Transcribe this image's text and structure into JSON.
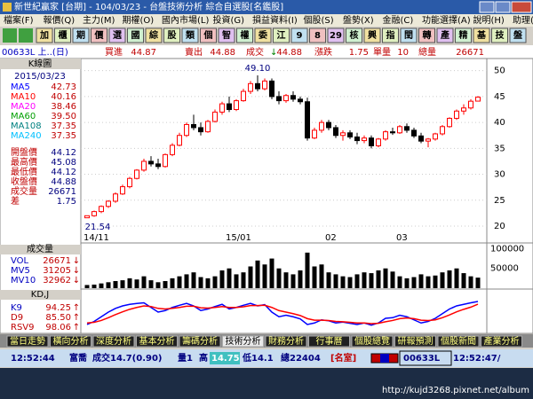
{
  "window": {
    "title": "新世紀贏家 [台期] - 104/03/23 - 台盤技術分析 綜合自選股[名鑑股]",
    "menu": [
      "檔案(F)",
      "報價(Q)",
      "主力(M)",
      "期權(O)",
      "國內市場(L)",
      "投資(G)",
      "損益資料(I)",
      "個股(S)",
      "盤勢(X)",
      "金融(C)",
      "功能選擇(A)",
      "說明(H)",
      "助理(Z)"
    ]
  },
  "toolbar": [
    "加",
    "櫃",
    "期",
    "價",
    "選",
    "國",
    "綜",
    "股",
    "類",
    "個",
    "智",
    "權",
    "委",
    "江",
    "9",
    "8",
    "29",
    "核",
    "興",
    "指",
    "閏",
    "轉",
    "產",
    "精",
    "基",
    "技",
    "盤"
  ],
  "quote": {
    "symbol": "00633L 上..(日)",
    "bid_label": "買進",
    "bid": "44.87",
    "ask_label": "賣出",
    "ask": "44.88",
    "last_label": "成交",
    "arrow": "↓",
    "last": "44.88",
    "change_label": "漲跌",
    "change": "1.75",
    "lot_label": "單量",
    "lot": "10",
    "volume_label": "總量",
    "volume": "26671"
  },
  "sidebar": {
    "title": "K線圖",
    "date": "2015/03/23",
    "ma": [
      {
        "name": "MA5",
        "value": "42.73",
        "color": "#0000ff"
      },
      {
        "name": "MA10",
        "value": "40.16",
        "color": "#ff0000"
      },
      {
        "name": "MA20",
        "value": "38.46",
        "color": "#ff00ff"
      },
      {
        "name": "MA60",
        "value": "39.50",
        "color": "#00a000"
      },
      {
        "name": "MA108",
        "value": "37.35",
        "color": "#008080"
      },
      {
        "name": "MA240",
        "value": "37.35",
        "color": "#00c0ff"
      }
    ],
    "ohlc": [
      {
        "name": "開盤價",
        "value": "44.12"
      },
      {
        "name": "最高價",
        "value": "45.08"
      },
      {
        "name": "最低價",
        "value": "44.12"
      },
      {
        "name": "收盤價",
        "value": "44.88"
      },
      {
        "name": "成交量",
        "value": "26671"
      },
      {
        "name": "差",
        "value": "1.75"
      }
    ]
  },
  "chart": {
    "ylim": [
      18.8,
      52.0
    ],
    "yticks": [
      20,
      25,
      30,
      35,
      40,
      45,
      50
    ],
    "up_color": "#ff0000",
    "down_color": "#000000",
    "high_label": "49.10",
    "low_label": "21.54",
    "xlabels": [
      {
        "index": 0,
        "label": "14/11"
      },
      {
        "index": 20,
        "label": "15/01"
      },
      {
        "index": 34,
        "label": "02"
      },
      {
        "index": 44,
        "label": "03"
      }
    ],
    "candles": [
      [
        21.6,
        22,
        21.54,
        22
      ],
      [
        22,
        23,
        21.8,
        22.8
      ],
      [
        22.8,
        24,
        22.5,
        23.8
      ],
      [
        23.8,
        25,
        23.5,
        24.8
      ],
      [
        24.8,
        26.5,
        24.5,
        26.2
      ],
      [
        26.2,
        28,
        26,
        27.6
      ],
      [
        27.6,
        29.5,
        27.3,
        29.2
      ],
      [
        29.2,
        31,
        29,
        30.8
      ],
      [
        30.8,
        33,
        30.5,
        32.5
      ],
      [
        32.5,
        33.5,
        31.5,
        32
      ],
      [
        32,
        33,
        31,
        31.5
      ],
      [
        31.5,
        34,
        31.3,
        33.8
      ],
      [
        33.8,
        36,
        33.5,
        35.6
      ],
      [
        35.6,
        38,
        35.4,
        37.5
      ],
      [
        37.5,
        40,
        37.2,
        39.6
      ],
      [
        39.6,
        41.5,
        38.5,
        39
      ],
      [
        39,
        40,
        37.5,
        38.2
      ],
      [
        38.2,
        40.5,
        38,
        40.2
      ],
      [
        40.2,
        42.5,
        40,
        42
      ],
      [
        42,
        44,
        41.5,
        43.6
      ],
      [
        43.6,
        45,
        42,
        42.5
      ],
      [
        42.5,
        44.5,
        42.2,
        44.2
      ],
      [
        44.2,
        46.5,
        44,
        46
      ],
      [
        46,
        48,
        45.5,
        47.5
      ],
      [
        47.5,
        49.1,
        46,
        46.5
      ],
      [
        46.5,
        48.5,
        46.2,
        48
      ],
      [
        48,
        48.5,
        44.5,
        45
      ],
      [
        45,
        46,
        43.5,
        44.2
      ],
      [
        44.2,
        45.5,
        43.8,
        45.2
      ],
      [
        45.2,
        46,
        44,
        44.5
      ],
      [
        44.5,
        45,
        43.5,
        44
      ],
      [
        44,
        44.8,
        36.5,
        37
      ],
      [
        37,
        39,
        36.8,
        38.5
      ],
      [
        38.5,
        40.5,
        38,
        40
      ],
      [
        40,
        40.5,
        38.5,
        39
      ],
      [
        39,
        39.5,
        37,
        37.5
      ],
      [
        37.5,
        38.5,
        36.5,
        38
      ],
      [
        38,
        38.5,
        36.8,
        37.2
      ],
      [
        37.2,
        38,
        35.8,
        36.5
      ],
      [
        36.5,
        37.5,
        36,
        37
      ],
      [
        37,
        37.5,
        35,
        35.5
      ],
      [
        35.5,
        37,
        35.2,
        36.8
      ],
      [
        36.8,
        38.5,
        36.5,
        38.2
      ],
      [
        38.2,
        39,
        37.6,
        38
      ],
      [
        38,
        39.5,
        37.8,
        39.2
      ],
      [
        39.2,
        39.8,
        38,
        38.5
      ],
      [
        38.5,
        39,
        37,
        37.4
      ],
      [
        37.4,
        38,
        36,
        36.4
      ],
      [
        36.4,
        37,
        35.2,
        36.8
      ],
      [
        36.8,
        38,
        36.5,
        37.8
      ],
      [
        37.8,
        39.5,
        37.5,
        39.2
      ],
      [
        39.2,
        41,
        39,
        40.8
      ],
      [
        40.8,
        42.5,
        40.5,
        42.2
      ],
      [
        42.2,
        43.5,
        41.5,
        42.8
      ],
      [
        42.8,
        44.5,
        42.5,
        44.1
      ],
      [
        44.12,
        45.08,
        44.12,
        44.88
      ]
    ]
  },
  "volume": {
    "title": "成交量",
    "ylim": [
      0,
      110000
    ],
    "yticks": [
      50000,
      100000
    ],
    "color": "#000000",
    "legend": [
      {
        "name": "VOL",
        "value": "26671",
        "arrow": "↓"
      },
      {
        "name": "MV5",
        "value": "31205",
        "arrow": "↓"
      },
      {
        "name": "MV10",
        "value": "32962",
        "arrow": "↓"
      }
    ],
    "values": [
      8000,
      9000,
      12000,
      15000,
      18000,
      20000,
      25000,
      22000,
      30000,
      20000,
      15000,
      18000,
      25000,
      30000,
      35000,
      40000,
      28000,
      25000,
      30000,
      45000,
      50000,
      35000,
      40000,
      55000,
      70000,
      60000,
      75000,
      50000,
      40000,
      35000,
      45000,
      90000,
      55000,
      60000,
      40000,
      35000,
      30000,
      28000,
      35000,
      40000,
      38000,
      45000,
      50000,
      42000,
      30000,
      25000,
      28000,
      35000,
      30000,
      32000,
      40000,
      45000,
      50000,
      38000,
      30000,
      26671
    ]
  },
  "kd": {
    "title": "KD,J",
    "ylim": [
      0,
      100
    ],
    "k_color": "#0000ff",
    "d_color": "#ff0000",
    "legend": [
      {
        "name": "K9",
        "value": "94.25",
        "arrow": "↑"
      },
      {
        "name": "D9",
        "value": "85.50",
        "arrow": "↑"
      },
      {
        "name": "RSV9",
        "value": "98.06",
        "arrow": "↑"
      }
    ],
    "k": [
      20,
      30,
      45,
      60,
      72,
      80,
      85,
      88,
      90,
      75,
      60,
      65,
      75,
      82,
      88,
      80,
      65,
      70,
      78,
      85,
      70,
      75,
      82,
      88,
      80,
      84,
      60,
      45,
      50,
      45,
      38,
      20,
      25,
      35,
      32,
      25,
      28,
      24,
      20,
      25,
      18,
      25,
      40,
      42,
      50,
      45,
      35,
      25,
      30,
      40,
      55,
      70,
      80,
      85,
      90,
      94.25
    ],
    "d": [
      25,
      27,
      33,
      42,
      52,
      61,
      69,
      75,
      80,
      78,
      72,
      70,
      72,
      75,
      79,
      79,
      74,
      73,
      75,
      78,
      75,
      75,
      77,
      81,
      81,
      82,
      75,
      65,
      60,
      55,
      49,
      39,
      34,
      34,
      33,
      30,
      29,
      27,
      25,
      25,
      23,
      24,
      29,
      33,
      39,
      41,
      39,
      34,
      33,
      35,
      42,
      51,
      61,
      69,
      76,
      85.5
    ]
  },
  "tabs": [
    "當日走勢",
    "橫向分析",
    "深度分析",
    "基本分析",
    "籌碼分析",
    "技術分析",
    "財務分析",
    "行事曆",
    "個股總覽",
    "研報預測",
    "個股新聞",
    "產業分析"
  ],
  "status": {
    "time": "12:52:44",
    "name": "富喬",
    "trade": "成交14.7(0.90)",
    "qty": "量1",
    "high_label": "高",
    "high": "14.75",
    "low": "低14.1",
    "total": "總22404",
    "room": "[名室]",
    "symbol": "00633L",
    "clock": "12:52:47/"
  },
  "watermark": "http://kujd3268.pixnet.net/album"
}
